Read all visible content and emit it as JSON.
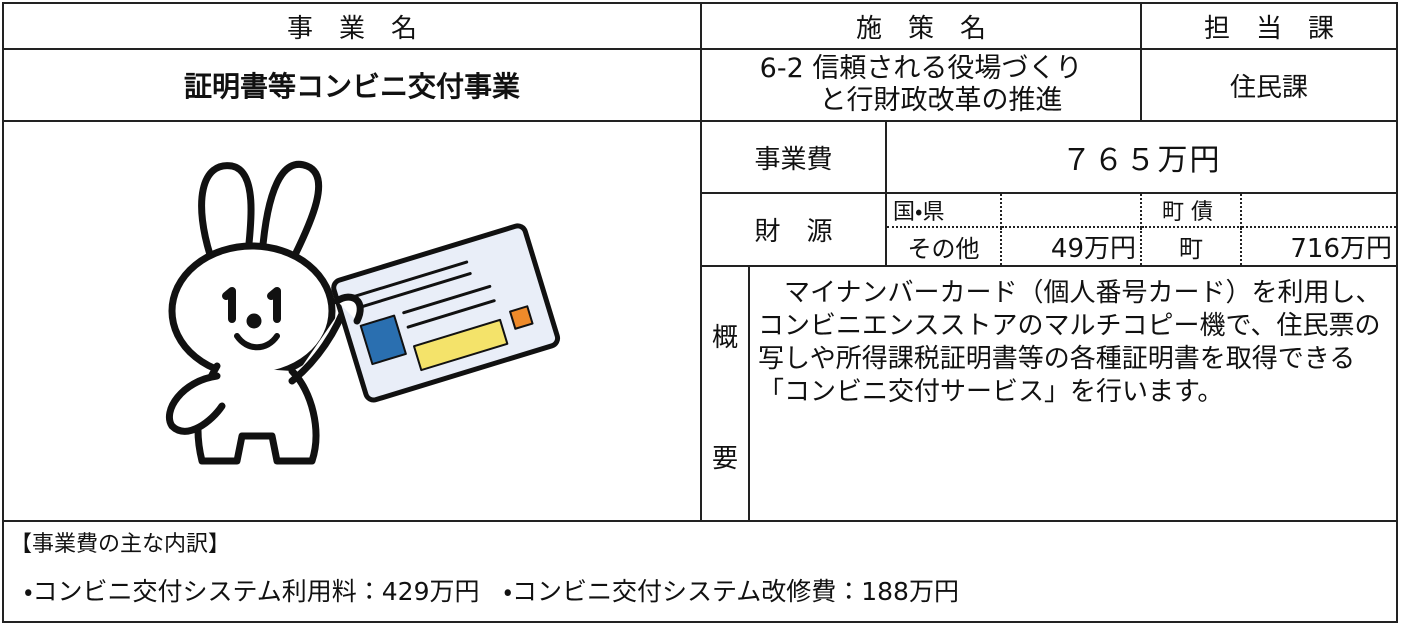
{
  "header": {
    "project_label": "事　業　名",
    "policy_label": "施　策　名",
    "department_label": "担　当　課"
  },
  "project": {
    "name": "証明書等コンビニ交付事業",
    "policy_lines": [
      "6-2 信頼される役場づくり",
      "と行財政改革の推進"
    ],
    "department": "住民課"
  },
  "cost": {
    "label": "事業費",
    "value": "７６５万円"
  },
  "funding": {
    "label": "財　源",
    "national_prefectural": "国・県",
    "other": "その他",
    "other_value": "49万円",
    "town_bond": "町 債",
    "town": "町",
    "town_value": "716万円"
  },
  "overview": {
    "label": [
      "概",
      "要"
    ],
    "text": "　マイナンバーカード（個人番号カード）を利用し、コンビニエンスストアのマルチコピー機で、住民票の写しや所得課税証明書等の各種証明書を取得できる「コンビニ交付サービス」を行います。"
  },
  "breakdown": {
    "title": "【事業費の主な内訳】",
    "items": [
      "・コンビニ交付システム利用料：429万円",
      "・コンビニ交付システム改修費：188万円"
    ]
  }
}
